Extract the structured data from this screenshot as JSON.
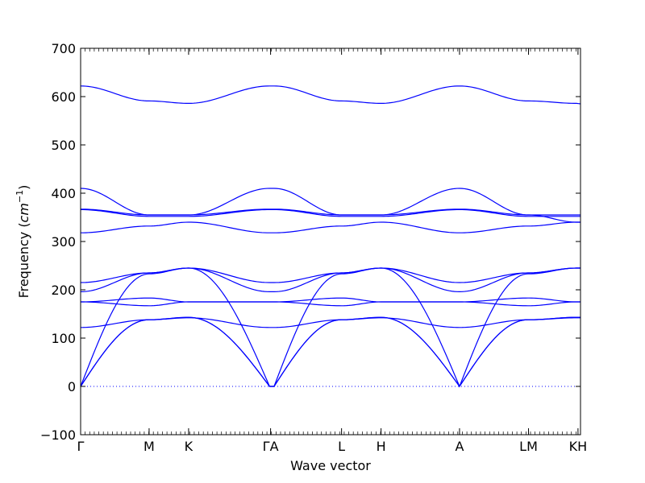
{
  "chart_data": {
    "type": "line",
    "title": "",
    "xlabel": "Wave vector",
    "ylabel_text": "Frequency (",
    "ylabel_unit_base": "cm",
    "ylabel_unit_exp": "−1",
    "ylabel_close": ")",
    "ylim": [
      -100,
      700
    ],
    "yticks": [
      -100,
      0,
      100,
      200,
      300,
      400,
      500,
      600,
      700
    ],
    "grid": false,
    "legend": "none",
    "line_color": "#0000ff",
    "zero_line": {
      "y": 0,
      "style": "dotted",
      "color": "#0000ff"
    },
    "x_labels": [
      {
        "label": "Γ",
        "x": 0.0
      },
      {
        "label": "M",
        "x": 0.137
      },
      {
        "label": "K",
        "x": 0.216
      },
      {
        "label": "ΓA",
        "x": 0.38
      },
      {
        "label": "L",
        "x": 0.522
      },
      {
        "label": "H",
        "x": 0.601
      },
      {
        "label": "A",
        "x": 0.758
      },
      {
        "label": "LM",
        "x": 0.896
      },
      {
        "label": "KH",
        "x": 0.995
      }
    ],
    "segment_x": [
      0.0,
      0.137,
      0.216,
      0.378,
      0.387,
      0.522,
      0.601,
      0.758,
      0.895,
      0.897,
      0.992,
      1.0
    ],
    "series": [
      {
        "values": [
          0,
          138,
          143,
          0,
          0,
          138,
          143,
          0,
          138,
          138,
          143,
          143
        ]
      },
      {
        "values": [
          0,
          138,
          143,
          0,
          0,
          138,
          143,
          0,
          138,
          138,
          143,
          143
        ]
      },
      {
        "values": [
          0,
          233,
          245,
          0,
          0,
          233,
          245,
          0,
          233,
          233,
          245,
          245
        ]
      },
      {
        "values": [
          122,
          138,
          142,
          122,
          122,
          138,
          142,
          122,
          138,
          138,
          142,
          142
        ]
      },
      {
        "values": [
          175,
          167,
          175,
          175,
          175,
          167,
          175,
          175,
          167,
          167,
          175,
          175
        ]
      },
      {
        "values": [
          175,
          183,
          175,
          175,
          175,
          183,
          175,
          175,
          183,
          183,
          175,
          175
        ]
      },
      {
        "values": [
          196,
          235,
          245,
          215,
          215,
          235,
          245,
          196,
          235,
          235,
          245,
          245
        ]
      },
      {
        "values": [
          215,
          235,
          245,
          196,
          196,
          235,
          245,
          215,
          235,
          235,
          245,
          245
        ]
      },
      {
        "values": [
          318,
          332,
          340,
          318,
          318,
          332,
          340,
          318,
          332,
          332,
          340,
          340
        ]
      },
      {
        "values": [
          366,
          352,
          352,
          366,
          366,
          352,
          352,
          366,
          352,
          352,
          352,
          352
        ]
      },
      {
        "values": [
          367,
          355,
          355,
          367,
          367,
          355,
          355,
          367,
          355,
          355,
          355,
          355
        ]
      },
      {
        "values": [
          410,
          355,
          355,
          410,
          410,
          355,
          355,
          410,
          355,
          355,
          340,
          340
        ]
      },
      {
        "values": [
          622,
          591,
          586,
          622,
          622,
          591,
          586,
          622,
          591,
          591,
          586,
          585
        ]
      }
    ]
  }
}
